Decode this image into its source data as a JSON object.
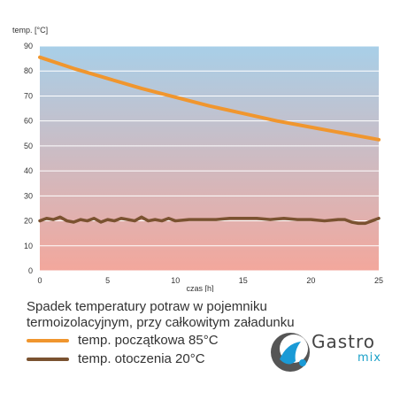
{
  "chart_data": {
    "type": "line",
    "ylabel": "temp. [°C]",
    "xlabel": "czas [h]",
    "xlim": [
      0,
      25
    ],
    "ylim": [
      0,
      90
    ],
    "xticks": [
      0,
      5,
      10,
      15,
      20,
      25
    ],
    "yticks": [
      0,
      10,
      20,
      30,
      40,
      50,
      60,
      70,
      80,
      90
    ],
    "grid": "horizontal",
    "colors": {
      "top": "#a8cfe8",
      "bottom": "#f3a79c",
      "grid": "#ffffff"
    },
    "series": [
      {
        "name": "temp. początkowa 85°C",
        "color": "#f0962e",
        "x": [
          0,
          2.5,
          5,
          7.5,
          10,
          12.5,
          15,
          17.5,
          20,
          22.5,
          25
        ],
        "y": [
          85.5,
          81,
          77,
          73,
          69.5,
          66,
          63,
          60,
          57.5,
          55,
          52.5
        ]
      },
      {
        "name": "temp. otoczenia 20°C",
        "color": "#7a5230",
        "x": [
          0,
          0.5,
          1,
          1.5,
          2,
          2.5,
          3,
          3.5,
          4,
          4.5,
          5,
          5.5,
          6,
          6.5,
          7,
          7.5,
          8,
          8.5,
          9,
          9.5,
          10,
          11,
          12,
          13,
          14,
          15,
          16,
          17,
          18,
          19,
          20,
          21,
          22,
          22.5,
          23,
          23.5,
          24,
          24.5,
          25
        ],
        "y": [
          20,
          21,
          20.5,
          21.5,
          20,
          19.5,
          20.5,
          20,
          21,
          19.5,
          20.5,
          20,
          21,
          20.5,
          20,
          21.5,
          20,
          20.5,
          20,
          21,
          20,
          20.5,
          20.5,
          20.5,
          21,
          21,
          21,
          20.5,
          21,
          20.5,
          20.5,
          20,
          20.5,
          20.5,
          19.5,
          19,
          19,
          20,
          21
        ]
      }
    ]
  },
  "caption": {
    "line1": "Spadek temperatury potraw w pojemniku",
    "line2": "termoizolacyjnym, przy całkowitym załadunku"
  },
  "legend": [
    {
      "label": "temp. początkowa 85°C",
      "color": "#f0962e"
    },
    {
      "label": "temp. otoczenia 20°C",
      "color": "#7a5230"
    }
  ],
  "logo": {
    "word": "Gastro",
    "sub": "mix",
    "icon": "water-drop-logo-icon",
    "colors": [
      "#1a9ad6",
      "#555555"
    ]
  }
}
